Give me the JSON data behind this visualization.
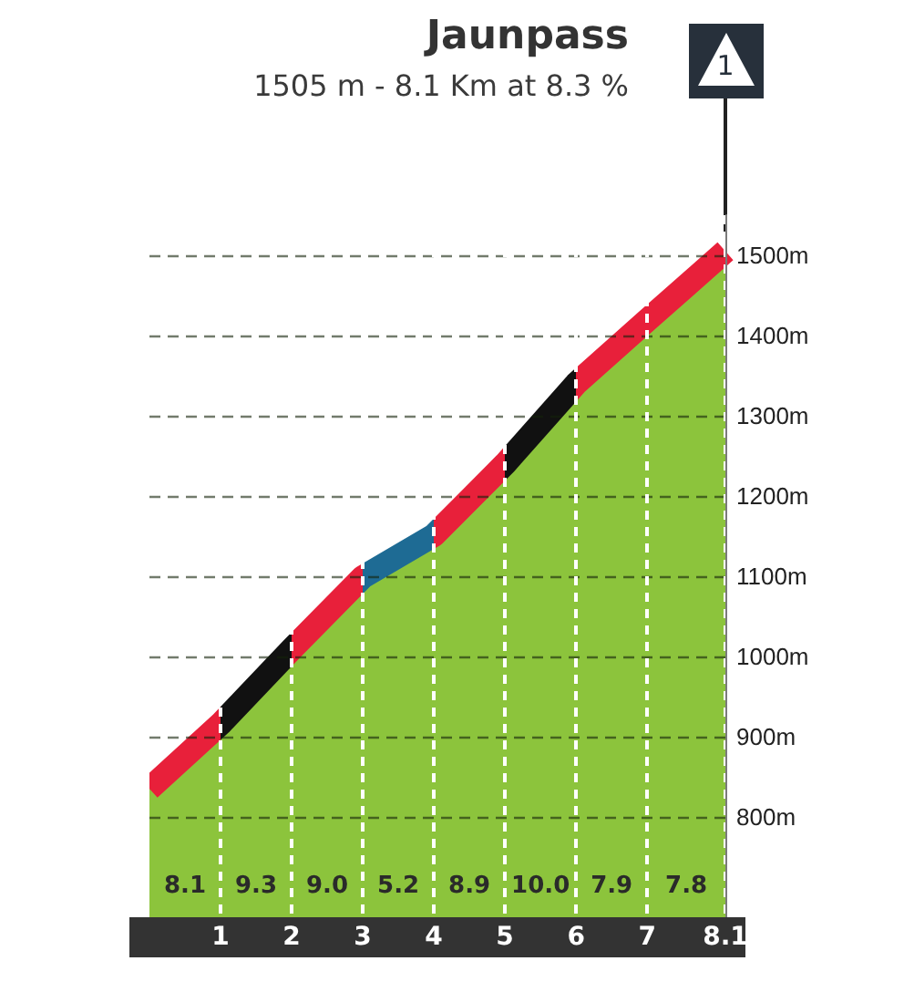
{
  "chart_data": {
    "type": "area",
    "title": "Jaunpass",
    "subtitle": "1505 m - 8.1 Km at 8.3 %",
    "x": [
      0,
      1,
      2,
      3,
      4,
      5,
      6,
      7,
      8.1
    ],
    "series": [
      {
        "color": "#8cc43c",
        "colors": [
          "#e8203a",
          "#111111",
          "#e8203a",
          "#1e6b94",
          "#e8203a",
          "#111111",
          "#e8203a",
          "#e8203a",
          "#e8203a"
        ],
        "values": [
          835,
          916,
          1009,
          1099,
          1151,
          1240,
          1340,
          1419,
          1505
        ]
      }
    ],
    "xlim": [
      0,
      8.1
    ],
    "xticks": [
      1,
      2,
      3,
      4,
      5,
      6,
      7,
      8.1
    ],
    "ylim": [
      650,
      1550
    ],
    "yticks": [
      {
        "value": 800,
        "label": "800m"
      },
      {
        "value": 900,
        "label": "900m"
      },
      {
        "value": 1000,
        "label": "1000m"
      },
      {
        "value": 1100,
        "label": "1100m"
      },
      {
        "value": 1200,
        "label": "1200m"
      },
      {
        "value": 1300,
        "label": "1300m"
      },
      {
        "value": 1400,
        "label": "1400m"
      },
      {
        "value": 1500,
        "label": "1500m"
      }
    ],
    "grid": true,
    "marker": "none",
    "annotations": [
      "1",
      "8.1",
      "9.3",
      "9.0",
      "5.2",
      "8.9",
      "10.0",
      "7.9",
      "7.8"
    ]
  }
}
